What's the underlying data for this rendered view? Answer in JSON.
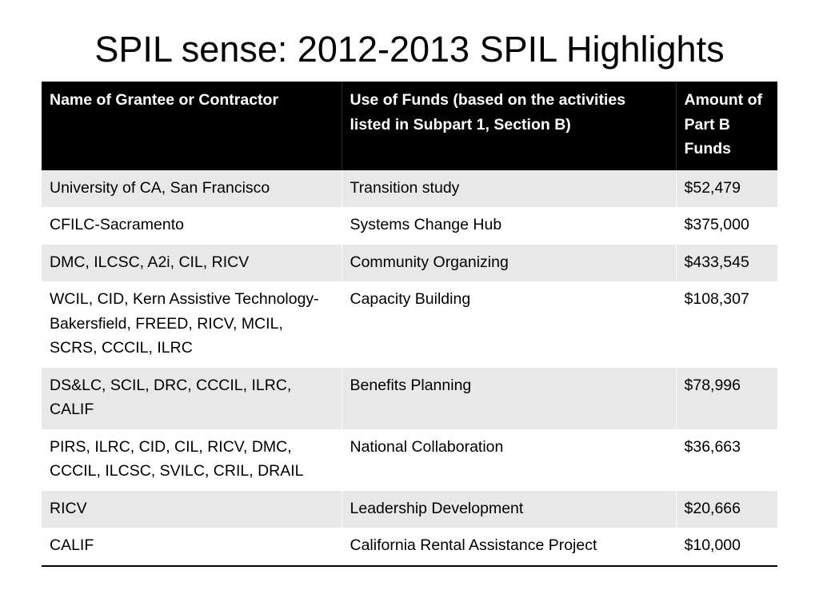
{
  "slide": {
    "title": "SPIL sense:  2012-2013 SPIL Highlights"
  },
  "table": {
    "headers": [
      "Name of Grantee or Contractor",
      "Use of Funds (based on the activities listed in Subpart 1, Section B)",
      "Amount of Part B Funds"
    ],
    "rows": [
      [
        "University of CA, San Francisco",
        "Transition study",
        "$52,479"
      ],
      [
        "CFILC-Sacramento",
        "Systems Change Hub",
        "$375,000"
      ],
      [
        "DMC, ILCSC, A2i, CIL, RICV",
        "Community Organizing",
        "$433,545"
      ],
      [
        "WCIL, CID, Kern Assistive Technology-Bakersfield, FREED, RICV, MCIL, SCRS, CCCIL, ILRC",
        "Capacity Building",
        "$108,307"
      ],
      [
        "DS&LC, SCIL, DRC, CCCIL, ILRC, CALIF",
        "Benefits Planning",
        "$78,996"
      ],
      [
        "PIRS, ILRC, CID, CIL, RICV, DMC, CCCIL, ILCSC, SVILC, CRIL, DRAIL",
        "National Collaboration",
        "$36,663"
      ],
      [
        "RICV",
        "Leadership Development",
        "$20,666"
      ],
      [
        "CALIF",
        "California Rental Assistance Project",
        "$10,000"
      ]
    ]
  },
  "colors": {
    "header_bg": "#000000",
    "header_text": "#ffffff",
    "row_shade": "#e8e8e8",
    "row_plain": "#ffffff"
  }
}
